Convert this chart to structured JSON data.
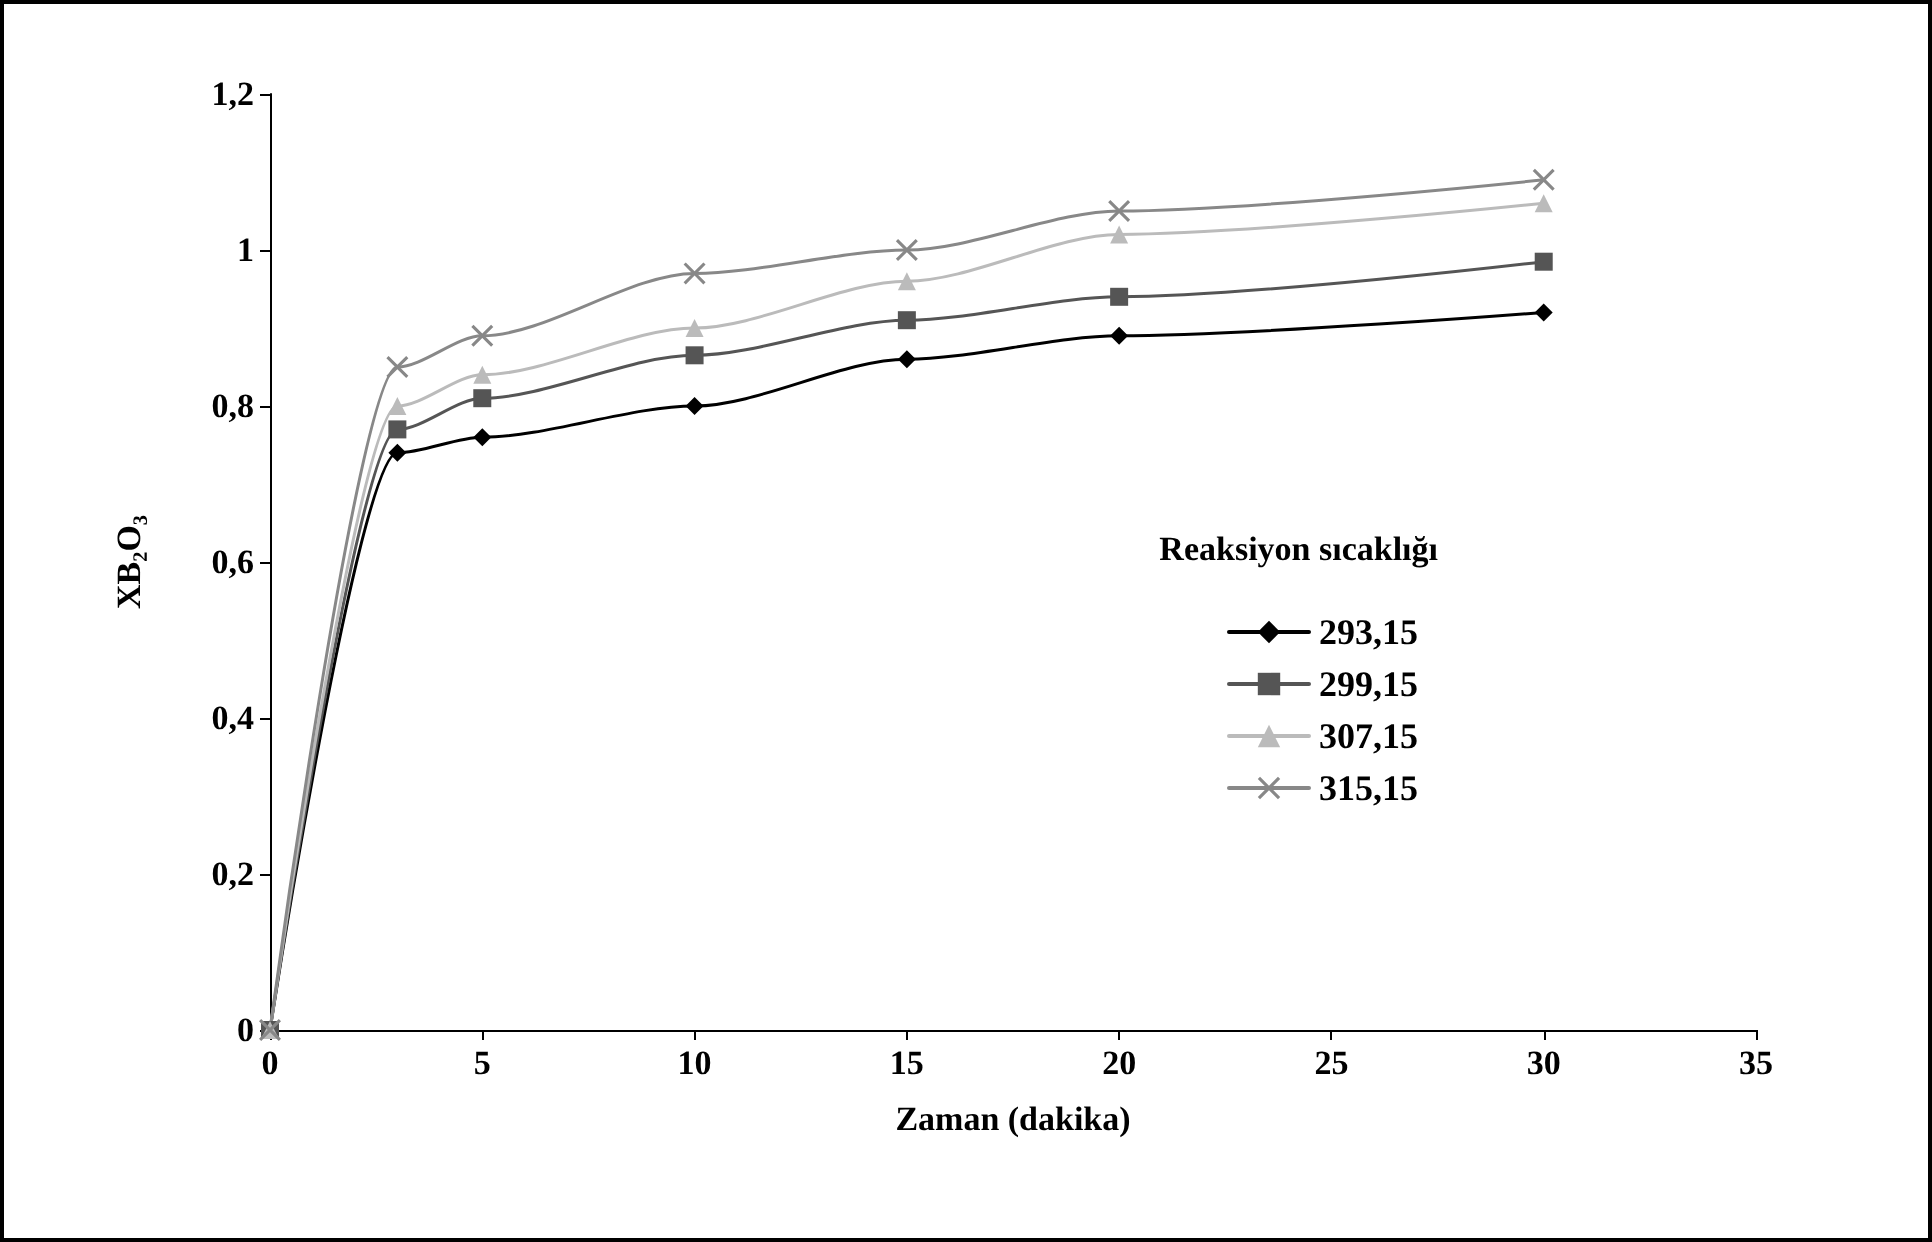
{
  "chart_data": {
    "type": "line",
    "xlabel": "Zaman (dakika)",
    "ylabel": "XB₂O₃",
    "legend_title": "Reaksiyon sıcaklığı",
    "legend": "right",
    "grid": false,
    "x": [
      0,
      3,
      5,
      10,
      15,
      20,
      30
    ],
    "xlim": [
      0,
      35
    ],
    "xticks": [
      0,
      5,
      10,
      15,
      20,
      25,
      30,
      35
    ],
    "ylim": [
      0,
      1.2
    ],
    "yticks": [
      0,
      {
        "value": 0.2,
        "label": "0,2"
      },
      {
        "value": 0.4,
        "label": "0,4"
      },
      {
        "value": 0.6,
        "label": "0,6"
      },
      {
        "value": 0.8,
        "label": "0,8"
      },
      1,
      {
        "value": 1.2,
        "label": "1,2"
      }
    ],
    "series": [
      {
        "name": "293,15",
        "color": "#000000",
        "marker": "diamond",
        "values": [
          0,
          0.74,
          0.76,
          0.8,
          0.86,
          0.89,
          0.92
        ]
      },
      {
        "name": "299,15",
        "color": "#555555",
        "marker": "square",
        "values": [
          0,
          0.77,
          0.81,
          0.865,
          0.91,
          0.94,
          0.985
        ]
      },
      {
        "name": "307,15",
        "color": "#bbbbbb",
        "marker": "triangle",
        "values": [
          0,
          0.8,
          0.84,
          0.9,
          0.96,
          1.02,
          1.06
        ]
      },
      {
        "name": "315,15",
        "color": "#888888",
        "marker": "cross",
        "values": [
          0,
          0.85,
          0.89,
          0.97,
          1,
          1.05,
          1.09
        ]
      }
    ]
  }
}
